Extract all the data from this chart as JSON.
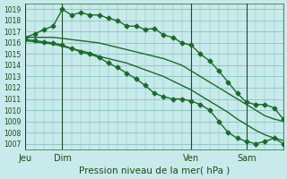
{
  "bg_color": "#c8eaea",
  "grid_color": "#7bbcbc",
  "line_color": "#1a6b2a",
  "title": "Pression niveau de la mer( hPa )",
  "ylabel_values": [
    1007,
    1008,
    1009,
    1010,
    1011,
    1012,
    1013,
    1014,
    1015,
    1016,
    1017,
    1018,
    1019
  ],
  "ylim": [
    1006.5,
    1019.5
  ],
  "xlim": [
    0,
    84
  ],
  "xtick_positions": [
    0,
    12,
    54,
    72
  ],
  "xtick_labels": [
    "Jeu",
    "Dim",
    "Ven",
    "Sam"
  ],
  "vlines": [
    0,
    12,
    54,
    72
  ],
  "series": [
    {
      "x": [
        0,
        3,
        6,
        9,
        12,
        15,
        18,
        21,
        24,
        27,
        30,
        33,
        36,
        39,
        42,
        45,
        48,
        51,
        54,
        57,
        60,
        63,
        66,
        69,
        72,
        75,
        78,
        81,
        84
      ],
      "y": [
        1016.5,
        1016.5,
        1016.5,
        1016.5,
        1016.4,
        1016.3,
        1016.2,
        1016.1,
        1016.0,
        1015.8,
        1015.6,
        1015.4,
        1015.2,
        1015.0,
        1014.8,
        1014.6,
        1014.3,
        1014.0,
        1013.5,
        1013.0,
        1012.5,
        1012.0,
        1011.5,
        1011.0,
        1010.5,
        1010.0,
        1009.5,
        1009.2,
        1009.0
      ],
      "marker": null,
      "lw": 1.0
    },
    {
      "x": [
        0,
        3,
        6,
        9,
        12,
        15,
        18,
        21,
        24,
        27,
        30,
        33,
        36,
        39,
        42,
        45,
        48,
        51,
        54,
        57,
        60,
        63,
        66,
        69,
        72,
        75,
        78,
        81,
        84
      ],
      "y": [
        1016.2,
        1016.1,
        1016.0,
        1015.9,
        1015.7,
        1015.5,
        1015.3,
        1015.1,
        1014.8,
        1014.6,
        1014.4,
        1014.2,
        1013.9,
        1013.6,
        1013.3,
        1013.0,
        1012.6,
        1012.2,
        1011.8,
        1011.3,
        1010.8,
        1010.3,
        1009.8,
        1009.2,
        1008.7,
        1008.2,
        1007.8,
        1007.5,
        1007.3
      ],
      "marker": null,
      "lw": 1.0
    },
    {
      "x": [
        0,
        3,
        6,
        9,
        12,
        15,
        18,
        21,
        24,
        27,
        30,
        33,
        36,
        39,
        42,
        45,
        48,
        51,
        54,
        57,
        60,
        63,
        66,
        69,
        72,
        75,
        78,
        81,
        84
      ],
      "y": [
        1016.5,
        1016.8,
        1017.2,
        1017.5,
        1019.0,
        1018.5,
        1018.7,
        1018.5,
        1018.5,
        1018.2,
        1018.0,
        1017.5,
        1017.5,
        1017.2,
        1017.3,
        1016.7,
        1016.5,
        1016.0,
        1015.8,
        1015.0,
        1014.4,
        1013.5,
        1012.5,
        1011.5,
        1010.7,
        1010.5,
        1010.5,
        1010.2,
        1009.2
      ],
      "marker": "D",
      "lw": 1.0
    },
    {
      "x": [
        0,
        3,
        6,
        9,
        12,
        15,
        18,
        21,
        24,
        27,
        30,
        33,
        36,
        39,
        42,
        45,
        48,
        51,
        54,
        57,
        60,
        63,
        66,
        69,
        72,
        75,
        78,
        81,
        84
      ],
      "y": [
        1016.3,
        1016.2,
        1016.1,
        1016.0,
        1015.8,
        1015.5,
        1015.2,
        1015.0,
        1014.7,
        1014.2,
        1013.8,
        1013.3,
        1012.8,
        1012.2,
        1011.5,
        1011.2,
        1011.0,
        1011.0,
        1010.8,
        1010.5,
        1010.0,
        1009.0,
        1008.0,
        1007.5,
        1007.2,
        1007.0,
        1007.2,
        1007.5,
        1007.0
      ],
      "marker": "D",
      "lw": 1.0
    }
  ]
}
